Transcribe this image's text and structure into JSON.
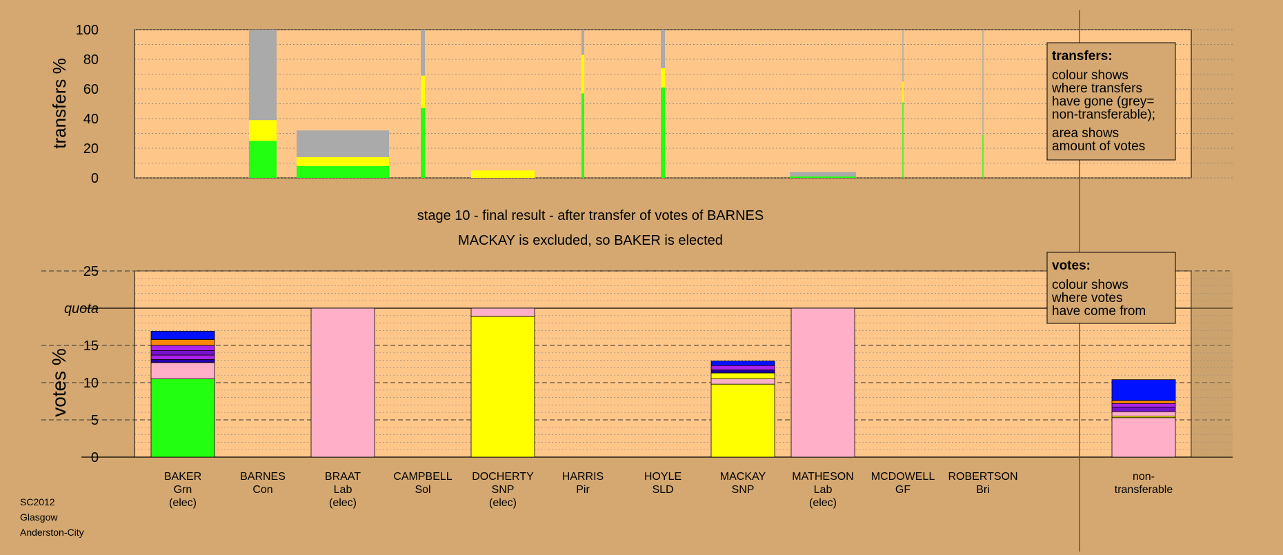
{
  "colors": {
    "page_bg": "#d4a870",
    "plot_bg": "#ffc68a",
    "grey": "#aaaaaa",
    "green": "#22ff11",
    "yellow": "#ffff00",
    "pink": "#ffb0c8",
    "blue": "#0011ff",
    "orange": "#ff8800",
    "purple": "#7711cc",
    "violet": "#aa22ee",
    "darkblue": "#2200aa"
  },
  "caption": {
    "line1": "stage 10 - final result - after transfer of votes of BARNES",
    "line2": "MACKAY is excluded, so BAKER is elected"
  },
  "footer": [
    "SC2012",
    "Glasgow",
    "Anderston-City"
  ],
  "legends": {
    "transfers": {
      "title": "transfers:",
      "lines": [
        "colour shows",
        "where transfers",
        "have gone (grey=",
        "non-transferable);",
        "area shows",
        "amount of votes"
      ]
    },
    "votes": {
      "title": "votes:",
      "lines": [
        "colour shows",
        "where votes",
        "have come from"
      ]
    }
  },
  "candidates": [
    {
      "name": "BAKER",
      "party": "Grn",
      "status": "(elec)"
    },
    {
      "name": "BARNES",
      "party": "Con",
      "status": ""
    },
    {
      "name": "BRAAT",
      "party": "Lab",
      "status": "(elec)"
    },
    {
      "name": "CAMPBELL",
      "party": "Sol",
      "status": ""
    },
    {
      "name": "DOCHERTY",
      "party": "SNP",
      "status": "(elec)"
    },
    {
      "name": "HARRIS",
      "party": "Pir",
      "status": ""
    },
    {
      "name": "HOYLE",
      "party": "SLD",
      "status": ""
    },
    {
      "name": "MACKAY",
      "party": "SNP",
      "status": ""
    },
    {
      "name": "MATHESON",
      "party": "Lab",
      "status": "(elec)"
    },
    {
      "name": "MCDOWELL",
      "party": "GF",
      "status": ""
    },
    {
      "name": "ROBERTSON",
      "party": "Bri",
      "status": ""
    }
  ],
  "nontransferable_label": [
    "non-",
    "transferable"
  ],
  "chart_data": [
    {
      "type": "bar",
      "title": "",
      "ylabel": "transfers %",
      "ylim": [
        0,
        100
      ],
      "yticks": [
        0,
        20,
        40,
        60,
        80,
        100
      ],
      "grid": "horizontal dotted",
      "legend_position": "top-right",
      "columns": [
        {
          "candidate": "BARNES",
          "width": 1.0,
          "segments": [
            {
              "color": "green",
              "value": 25
            },
            {
              "color": "yellow",
              "value": 14
            },
            {
              "color": "grey",
              "value": 61
            }
          ]
        },
        {
          "candidate": "BRAAT",
          "width": 1.0,
          "segments": [
            {
              "color": "green",
              "value": 8
            },
            {
              "color": "yellow",
              "value": 6
            },
            {
              "color": "grey",
              "value": 18
            }
          ]
        },
        {
          "candidate": "CAMPBELL",
          "width": 1.0,
          "segments": [
            {
              "color": "green",
              "value": 47
            },
            {
              "color": "yellow",
              "value": 22
            },
            {
              "color": "grey",
              "value": 31
            }
          ]
        },
        {
          "candidate": "DOCHERTY",
          "width": 1.0,
          "segments": [
            {
              "color": "yellow",
              "value": 5
            }
          ]
        },
        {
          "candidate": "HARRIS",
          "width": 1.0,
          "segments": [
            {
              "color": "green",
              "value": 57
            },
            {
              "color": "yellow",
              "value": 26
            },
            {
              "color": "grey",
              "value": 17
            }
          ]
        },
        {
          "candidate": "HOYLE",
          "width": 1.0,
          "segments": [
            {
              "color": "green",
              "value": 61
            },
            {
              "color": "yellow",
              "value": 13
            },
            {
              "color": "grey",
              "value": 26
            }
          ]
        },
        {
          "candidate": "MATHESON",
          "width": 1.0,
          "segments": [
            {
              "color": "green",
              "value": 1
            },
            {
              "color": "grey",
              "value": 3
            }
          ]
        },
        {
          "candidate": "MCDOWELL",
          "width": 1.0,
          "segments": [
            {
              "color": "green",
              "value": 51
            },
            {
              "color": "yellow",
              "value": 14
            },
            {
              "color": "grey",
              "value": 35
            }
          ]
        },
        {
          "candidate": "ROBERTSON",
          "width": 1.0,
          "segments": [
            {
              "color": "green",
              "value": 29
            },
            {
              "color": "grey",
              "value": 71
            }
          ]
        }
      ]
    },
    {
      "type": "bar",
      "title": "",
      "ylabel": "votes %",
      "ylim": [
        0,
        25
      ],
      "yticks": [
        0,
        5,
        10,
        15,
        20,
        25
      ],
      "quota": 20,
      "quota_label": "quota",
      "grid": "horizontal dashed",
      "legend_position": "top-right",
      "columns": [
        {
          "candidate": "BAKER",
          "segments": [
            {
              "color": "green",
              "value": 10.5
            },
            {
              "color": "pink",
              "value": 2.2
            },
            {
              "color": "darkblue",
              "value": 0.4
            },
            {
              "color": "violet",
              "value": 0.6
            },
            {
              "color": "purple",
              "value": 0.6
            },
            {
              "color": "violet",
              "value": 0.7
            },
            {
              "color": "orange",
              "value": 0.8
            },
            {
              "color": "blue",
              "value": 1.1
            }
          ]
        },
        {
          "candidate": "BARNES",
          "segments": []
        },
        {
          "candidate": "BRAAT",
          "segments": [
            {
              "color": "pink",
              "value": 20
            }
          ]
        },
        {
          "candidate": "CAMPBELL",
          "segments": []
        },
        {
          "candidate": "DOCHERTY",
          "segments": [
            {
              "color": "yellow",
              "value": 18.9
            },
            {
              "color": "pink",
              "value": 1.1
            }
          ]
        },
        {
          "candidate": "HARRIS",
          "segments": []
        },
        {
          "candidate": "HOYLE",
          "segments": []
        },
        {
          "candidate": "MACKAY",
          "segments": [
            {
              "color": "yellow",
              "value": 9.8
            },
            {
              "color": "pink",
              "value": 0.7
            },
            {
              "color": "yellow",
              "value": 0.8
            },
            {
              "color": "darkblue",
              "value": 0.4
            },
            {
              "color": "violet",
              "value": 0.6
            },
            {
              "color": "blue",
              "value": 0.6
            }
          ]
        },
        {
          "candidate": "MATHESON",
          "segments": [
            {
              "color": "pink",
              "value": 20
            }
          ]
        },
        {
          "candidate": "MCDOWELL",
          "segments": []
        },
        {
          "candidate": "ROBERTSON",
          "segments": []
        },
        {
          "candidate": "non-transferable",
          "segments": [
            {
              "color": "pink",
              "value": 5.3
            },
            {
              "color": "yellow",
              "value": 0.2
            },
            {
              "color": "pink",
              "value": 0.6
            },
            {
              "color": "purple",
              "value": 0.6
            },
            {
              "color": "violet",
              "value": 0.5
            },
            {
              "color": "orange",
              "value": 0.4
            },
            {
              "color": "blue",
              "value": 2.8
            }
          ]
        }
      ]
    }
  ]
}
